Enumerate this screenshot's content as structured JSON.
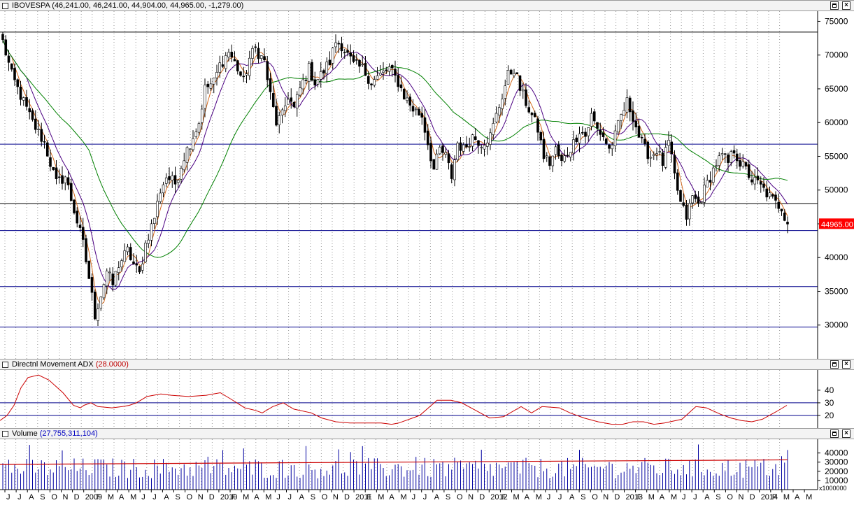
{
  "chart_data": [
    {
      "type": "candlestick",
      "title": "IBOVESPA",
      "quote": "(46,241.00, 46,241.00, 44,904.00, 44,965.00, -1,279.00)",
      "last_value_label": "44965.00",
      "last_close": 44965,
      "ylim": [
        25000,
        76500
      ],
      "yticks": [
        30000,
        35000,
        40000,
        45000,
        50000,
        55000,
        60000,
        65000,
        70000,
        75000
      ],
      "ytick_labels": [
        "30000",
        "35000",
        "40000",
        "45000",
        "50000",
        "55000",
        "60000",
        "65000",
        "70000",
        "75000"
      ],
      "hlines_black": [
        73400,
        48000
      ],
      "hlines_blue": [
        56800,
        44000,
        35700,
        29700
      ],
      "close_keypoints": [
        [
          0,
          72000
        ],
        [
          3,
          67000
        ],
        [
          6,
          64000
        ],
        [
          10,
          60000
        ],
        [
          14,
          57000
        ],
        [
          18,
          51000
        ],
        [
          21,
          52000
        ],
        [
          24,
          47000
        ],
        [
          27,
          42000
        ],
        [
          29,
          37000
        ],
        [
          31,
          31500
        ],
        [
          33,
          34500
        ],
        [
          35,
          38000
        ],
        [
          37,
          36000
        ],
        [
          39,
          39000
        ],
        [
          42,
          41000
        ],
        [
          44,
          39000
        ],
        [
          46,
          37500
        ],
        [
          48,
          42000
        ],
        [
          51,
          46000
        ],
        [
          53,
          50000
        ],
        [
          55,
          52000
        ],
        [
          58,
          51000
        ],
        [
          61,
          55000
        ],
        [
          63,
          57000
        ],
        [
          66,
          60000
        ],
        [
          68,
          65000
        ],
        [
          71,
          66000
        ],
        [
          73,
          68500
        ],
        [
          76,
          70500
        ],
        [
          79,
          68000
        ],
        [
          81,
          66000
        ],
        [
          83,
          69500
        ],
        [
          85,
          71000
        ],
        [
          88,
          69000
        ],
        [
          90,
          64000
        ],
        [
          92,
          60000
        ],
        [
          94,
          61000
        ],
        [
          96,
          64000
        ],
        [
          98,
          62000
        ],
        [
          100,
          65000
        ],
        [
          103,
          68000
        ],
        [
          105,
          66000
        ],
        [
          107,
          67000
        ],
        [
          110,
          69000
        ],
        [
          112,
          72000
        ],
        [
          114,
          71500
        ],
        [
          116,
          70000
        ],
        [
          118,
          68500
        ],
        [
          121,
          68000
        ],
        [
          124,
          66000
        ],
        [
          127,
          67000
        ],
        [
          130,
          68000
        ],
        [
          133,
          66000
        ],
        [
          135,
          64000
        ],
        [
          138,
          62000
        ],
        [
          141,
          61000
        ],
        [
          143,
          57000
        ],
        [
          145,
          53000
        ],
        [
          147,
          56000
        ],
        [
          149,
          55000
        ],
        [
          151,
          52000
        ],
        [
          153,
          57000
        ],
        [
          155,
          56000
        ],
        [
          158,
          58000
        ],
        [
          161,
          57000
        ],
        [
          164,
          58000
        ],
        [
          166,
          61000
        ],
        [
          168,
          64000
        ],
        [
          170,
          67000
        ],
        [
          172,
          68000
        ],
        [
          174,
          65000
        ],
        [
          176,
          63000
        ],
        [
          178,
          61000
        ],
        [
          180,
          59000
        ],
        [
          182,
          55000
        ],
        [
          184,
          54000
        ],
        [
          186,
          56000
        ],
        [
          188,
          54000
        ],
        [
          190,
          55500
        ],
        [
          192,
          57000
        ],
        [
          194,
          59000
        ],
        [
          196,
          58000
        ],
        [
          198,
          61000
        ],
        [
          200,
          59000
        ],
        [
          202,
          58000
        ],
        [
          204,
          56000
        ],
        [
          206,
          58000
        ],
        [
          208,
          61000
        ],
        [
          210,
          63000
        ],
        [
          212,
          61000
        ],
        [
          214,
          58000
        ],
        [
          216,
          56000
        ],
        [
          218,
          55000
        ],
        [
          220,
          56000
        ],
        [
          222,
          54000
        ],
        [
          224,
          57000
        ],
        [
          226,
          52000
        ],
        [
          228,
          48000
        ],
        [
          230,
          46000
        ],
        [
          232,
          49000
        ],
        [
          234,
          48000
        ],
        [
          236,
          50000
        ],
        [
          238,
          52000
        ],
        [
          240,
          54000
        ],
        [
          242,
          55000
        ],
        [
          244,
          54000
        ],
        [
          246,
          56000
        ],
        [
          248,
          54000
        ],
        [
          250,
          53000
        ],
        [
          252,
          51500
        ],
        [
          254,
          51000
        ],
        [
          256,
          50000
        ],
        [
          258,
          49000
        ],
        [
          260,
          48000
        ],
        [
          262,
          47500
        ],
        [
          264,
          44965
        ]
      ],
      "x_tick_labels": [
        "J",
        "J",
        "A",
        "S",
        "O",
        "N",
        "D",
        "2009",
        "F",
        "M",
        "A",
        "M",
        "J",
        "J",
        "A",
        "S",
        "O",
        "N",
        "D",
        "2010",
        "F",
        "M",
        "A",
        "M",
        "J",
        "J",
        "A",
        "S",
        "O",
        "N",
        "D",
        "2011",
        "F",
        "M",
        "A",
        "M",
        "J",
        "J",
        "A",
        "S",
        "O",
        "N",
        "D",
        "2012",
        "F",
        "M",
        "A",
        "M",
        "J",
        "J",
        "A",
        "S",
        "O",
        "N",
        "D",
        "2013",
        "F",
        "M",
        "A",
        "M",
        "J",
        "J",
        "A",
        "S",
        "O",
        "N",
        "D",
        "2014",
        "F",
        "M",
        "A",
        "M"
      ]
    },
    {
      "type": "line",
      "title": "Directnl Movement ADX",
      "title_value": "(28.0000)",
      "ylim": [
        10,
        56
      ],
      "yticks": [
        20,
        30,
        40
      ],
      "ytick_labels": [
        "20",
        "30",
        "40"
      ],
      "hlines_blue": [
        30,
        20
      ],
      "series": [
        {
          "values": [
            [
              0,
              16
            ],
            [
              10,
              20
            ],
            [
              20,
              28
            ],
            [
              30,
              42
            ],
            [
              40,
              50
            ],
            [
              55,
              52
            ],
            [
              70,
              48
            ],
            [
              90,
              38
            ],
            [
              105,
              28
            ],
            [
              115,
              26
            ],
            [
              120,
              28
            ],
            [
              130,
              30
            ],
            [
              140,
              27
            ],
            [
              160,
              26
            ],
            [
              175,
              27
            ],
            [
              185,
              28
            ],
            [
              195,
              30
            ],
            [
              210,
              35
            ],
            [
              230,
              37
            ],
            [
              245,
              36
            ],
            [
              270,
              35
            ],
            [
              295,
              36
            ],
            [
              305,
              37
            ],
            [
              315,
              38
            ],
            [
              330,
              33
            ],
            [
              350,
              26
            ],
            [
              365,
              24
            ],
            [
              375,
              22
            ],
            [
              390,
              27
            ],
            [
              405,
              30
            ],
            [
              420,
              25
            ],
            [
              445,
              22
            ],
            [
              460,
              18
            ],
            [
              480,
              15
            ],
            [
              500,
              14
            ],
            [
              520,
              14
            ],
            [
              545,
              14
            ],
            [
              560,
              13
            ],
            [
              570,
              14
            ],
            [
              600,
              20
            ],
            [
              625,
              32
            ],
            [
              645,
              32
            ],
            [
              660,
              30
            ],
            [
              680,
              24
            ],
            [
              700,
              18
            ],
            [
              720,
              19
            ],
            [
              745,
              27
            ],
            [
              760,
              22
            ],
            [
              775,
              27
            ],
            [
              800,
              26
            ],
            [
              815,
              22
            ],
            [
              835,
              18
            ],
            [
              855,
              15
            ],
            [
              875,
              13
            ],
            [
              890,
              13
            ],
            [
              905,
              15
            ],
            [
              920,
              15
            ],
            [
              935,
              13
            ],
            [
              950,
              14
            ],
            [
              975,
              17
            ],
            [
              995,
              27
            ],
            [
              1010,
              26
            ],
            [
              1030,
              21
            ],
            [
              1045,
              18
            ],
            [
              1060,
              16
            ],
            [
              1075,
              15
            ],
            [
              1090,
              17
            ],
            [
              1110,
              23
            ],
            [
              1125,
              28
            ]
          ]
        }
      ]
    },
    {
      "type": "bar",
      "title": "Volume",
      "title_value": "(27,755,311,104)",
      "ylim": [
        0,
        55000
      ],
      "yticks": [
        10000,
        20000,
        30000,
        40000
      ],
      "ytick_labels": [
        "10000",
        "20000",
        "30000",
        "40000"
      ],
      "unit_label": "x1000000",
      "volume_avg_level": 27500,
      "volume_min": 12000,
      "volume_max": 50000
    }
  ]
}
